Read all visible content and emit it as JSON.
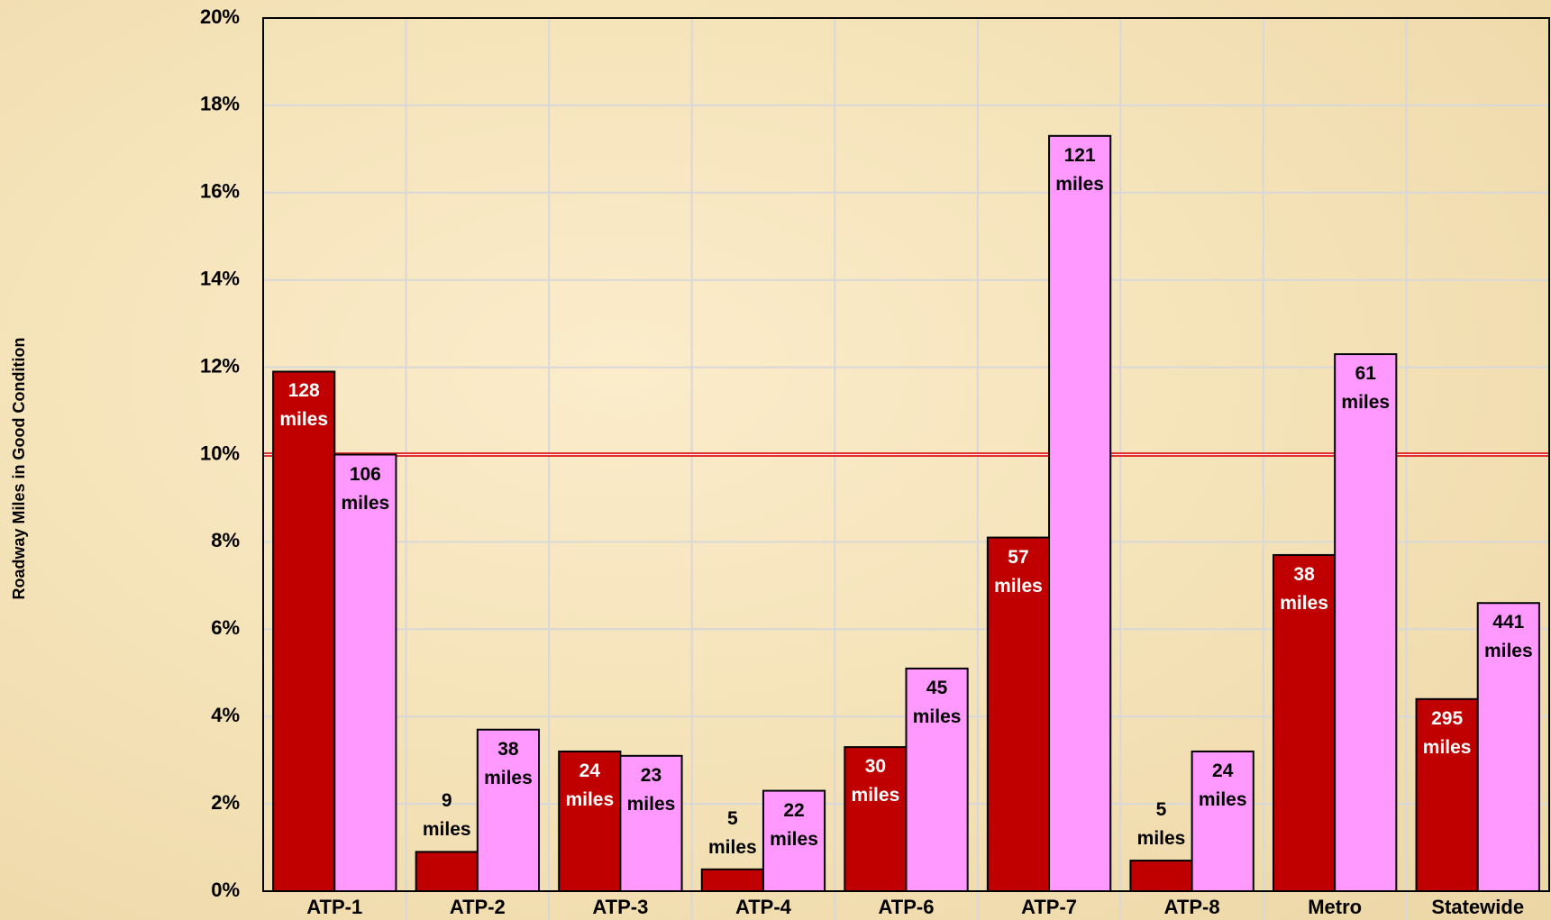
{
  "chart_data": {
    "type": "bar",
    "y_axis_label": "Roadway Miles in Good Condition",
    "categories": [
      "ATP-1",
      "ATP-2",
      "ATP-3",
      "ATP-4",
      "ATP-6",
      "ATP-7",
      "ATP-8",
      "Metro",
      "Statewide"
    ],
    "series": [
      {
        "color": "#c00000",
        "label_color": "#ffffff",
        "values": [
          11.9,
          0.9,
          3.2,
          0.5,
          3.3,
          8.1,
          0.7,
          7.7,
          4.4
        ],
        "data_labels": [
          "128 miles",
          "9 miles",
          "24 miles",
          "5 miles",
          "30 miles",
          "57 miles",
          "5 miles",
          "38 miles",
          "295 miles"
        ]
      },
      {
        "color": "#ff99ff",
        "label_color": "#000000",
        "values": [
          10.0,
          3.7,
          3.1,
          2.3,
          5.1,
          17.3,
          3.2,
          12.3,
          6.6
        ],
        "data_labels": [
          "106 miles",
          "38 miles",
          "23 miles",
          "22 miles",
          "45 miles",
          "121 miles",
          "24 miles",
          "61 miles",
          "441 miles"
        ]
      }
    ],
    "ylim": [
      0,
      20
    ],
    "yticks": [
      {
        "value": 0,
        "label": "0%"
      },
      {
        "value": 2,
        "label": "2%"
      },
      {
        "value": 4,
        "label": "4%"
      },
      {
        "value": 6,
        "label": "6%"
      },
      {
        "value": 8,
        "label": "8%"
      },
      {
        "value": 10,
        "label": "10%"
      },
      {
        "value": 12,
        "label": "12%"
      },
      {
        "value": 14,
        "label": "14%"
      },
      {
        "value": 16,
        "label": "16%"
      },
      {
        "value": 18,
        "label": "18%"
      },
      {
        "value": 20,
        "label": "20%"
      }
    ],
    "grid": true,
    "reference_line": {
      "value": 10,
      "color": "#e03030"
    }
  }
}
